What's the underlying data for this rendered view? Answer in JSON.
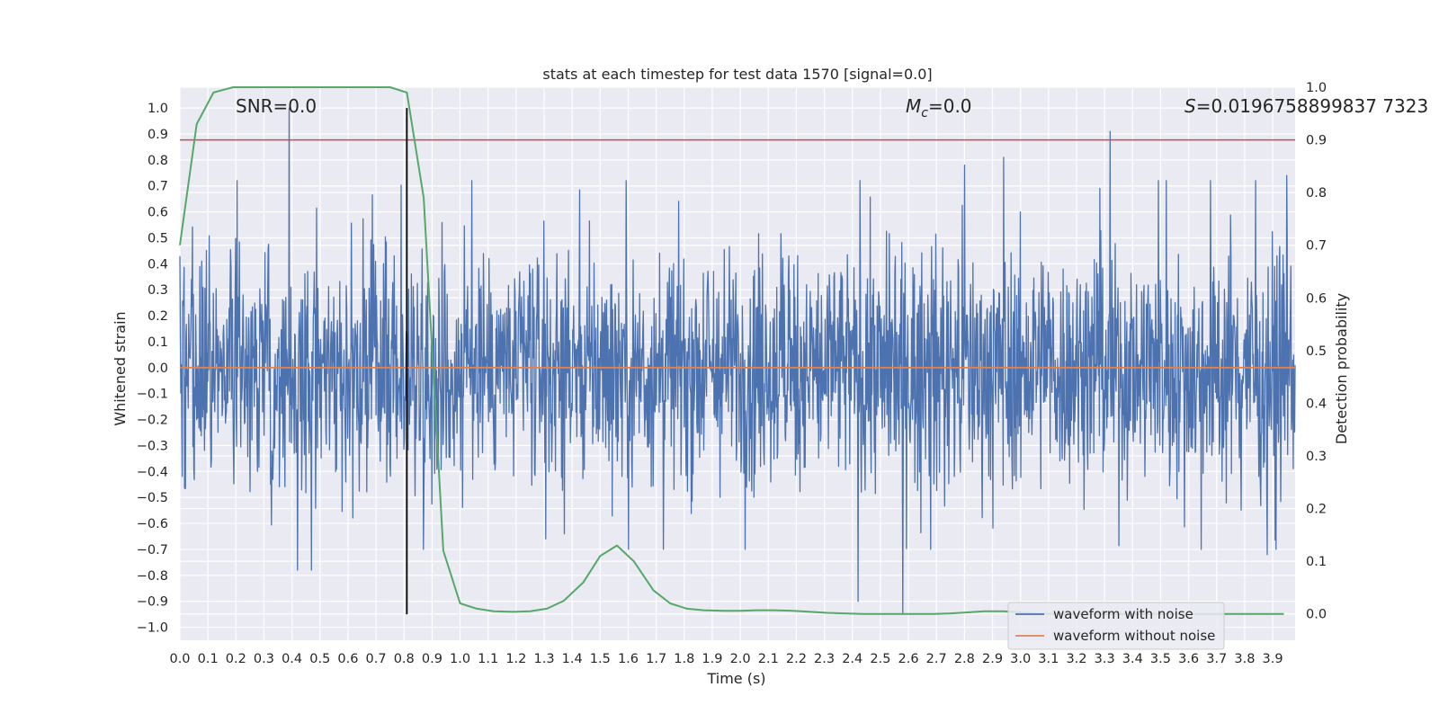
{
  "chart_data": {
    "type": "line",
    "title": "stats at each timestep for test data 1570 [signal=0.0]",
    "xlabel": "Time (s)",
    "ylabel_left": "Whitened strain",
    "ylabel_right": "Detection probability",
    "xlim": [
      0.0,
      3.98
    ],
    "ylim_left": [
      -1.05,
      1.08
    ],
    "ylim_right": [
      -0.05,
      1.0
    ],
    "x_ticks": [
      "0.0",
      "0.1",
      "0.2",
      "0.3",
      "0.4",
      "0.5",
      "0.6",
      "0.7",
      "0.8",
      "0.9",
      "1.0",
      "1.1",
      "1.2",
      "1.3",
      "1.4",
      "1.5",
      "1.6",
      "1.7",
      "1.8",
      "1.9",
      "2.0",
      "2.1",
      "2.2",
      "2.3",
      "2.4",
      "2.5",
      "2.6",
      "2.7",
      "2.8",
      "2.9",
      "3.0",
      "3.1",
      "3.2",
      "3.3",
      "3.4",
      "3.5",
      "3.6",
      "3.7",
      "3.8",
      "3.9"
    ],
    "y_ticks_left": [
      "1.0",
      "0.9",
      "0.8",
      "0.7",
      "0.6",
      "0.5",
      "0.4",
      "0.3",
      "0.2",
      "0.1",
      "0.0",
      "−0.1",
      "−0.2",
      "−0.3",
      "−0.4",
      "−0.5",
      "−0.6",
      "−0.7",
      "−0.8",
      "−0.9",
      "−1.0"
    ],
    "y_ticks_right": [
      "1.0",
      "0.9",
      "0.8",
      "0.7",
      "0.6",
      "0.5",
      "0.4",
      "0.3",
      "0.2",
      "0.1",
      "0.0"
    ],
    "annotations": {
      "snr": "SNR=0.0",
      "mc_symbol": "M",
      "mc_sub": "c",
      "mc_value": "=0.0",
      "s_symbol": "S",
      "s_value": "=0.0196758899837 7323"
    },
    "threshold_right": 0.9,
    "marker_x": 0.81,
    "grid": true,
    "legend_position": "lower right",
    "series": [
      {
        "name": "waveform with noise",
        "axis": "left",
        "color": "#4c72b0",
        "description": "dense noise, amplitude mostly within ±0.45, spikes up to 1.0 at x≈0.39 and 0.91 at x≈3.32, down to −0.95 at x≈2.58",
        "spikes": [
          {
            "x": 0.39,
            "y": 1.0
          },
          {
            "x": 3.32,
            "y": 0.91
          },
          {
            "x": 2.94,
            "y": 0.81
          },
          {
            "x": 2.8,
            "y": 0.78
          },
          {
            "x": 3.95,
            "y": 0.74
          },
          {
            "x": 2.58,
            "y": -0.95
          },
          {
            "x": 2.42,
            "y": -0.9
          },
          {
            "x": 0.42,
            "y": -0.78
          },
          {
            "x": 0.47,
            "y": -0.78
          },
          {
            "x": 3.88,
            "y": -0.72
          }
        ]
      },
      {
        "name": "waveform without noise",
        "axis": "left",
        "color": "#dd8452",
        "x": [
          0.0,
          3.98
        ],
        "y": [
          0.0,
          0.0
        ]
      },
      {
        "name": "detection probability",
        "axis": "right",
        "color": "#55a868",
        "x": [
          0.0,
          0.06,
          0.12,
          0.19,
          0.25,
          0.31,
          0.37,
          0.44,
          0.5,
          0.56,
          0.62,
          0.69,
          0.75,
          0.81,
          0.87,
          0.94,
          1.0,
          1.06,
          1.12,
          1.19,
          1.25,
          1.31,
          1.37,
          1.44,
          1.5,
          1.56,
          1.62,
          1.69,
          1.75,
          1.81,
          1.87,
          1.94,
          2.0,
          2.06,
          2.12,
          2.19,
          2.25,
          2.31,
          2.37,
          2.44,
          2.5,
          2.56,
          2.62,
          2.69,
          2.75,
          2.81,
          2.87,
          2.94,
          3.0,
          3.06,
          3.12,
          3.19,
          3.25,
          3.31,
          3.37,
          3.44,
          3.5,
          3.56,
          3.62,
          3.69,
          3.75,
          3.81,
          3.87,
          3.94
        ],
        "y": [
          0.7,
          0.93,
          0.99,
          1.0,
          1.0,
          1.0,
          1.0,
          1.0,
          1.0,
          1.0,
          1.0,
          1.0,
          1.0,
          0.99,
          0.79,
          0.12,
          0.02,
          0.01,
          0.005,
          0.004,
          0.005,
          0.01,
          0.025,
          0.06,
          0.11,
          0.13,
          0.1,
          0.045,
          0.02,
          0.01,
          0.007,
          0.006,
          0.006,
          0.007,
          0.007,
          0.006,
          0.004,
          0.002,
          0.001,
          0.0,
          0.0,
          0.0,
          0.0,
          0.0,
          0.001,
          0.003,
          0.005,
          0.005,
          0.003,
          0.001,
          0.0,
          0.0,
          0.0,
          0.0,
          0.0,
          0.0,
          0.0,
          0.0,
          0.0,
          0.0,
          0.0,
          0.0,
          0.0,
          0.0
        ]
      }
    ]
  }
}
